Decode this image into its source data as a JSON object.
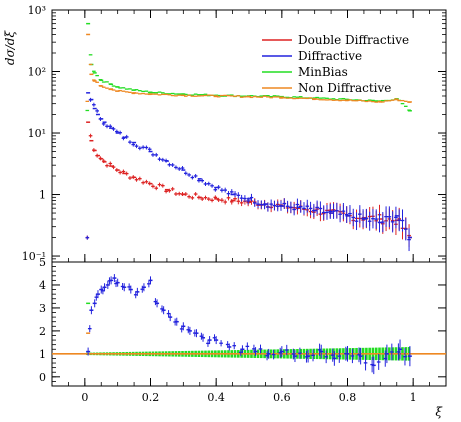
{
  "chart_data": [
    {
      "type": "scatter",
      "panel": "main",
      "ylabel": "dσ/dξ",
      "yscale": "log",
      "xlim": [
        -0.1,
        1.1
      ],
      "ylim": [
        0.08,
        1000
      ],
      "y_ticks": [
        {
          "value": 0.1,
          "label": "10⁻¹"
        },
        {
          "value": 1,
          "label": "1"
        },
        {
          "value": 10,
          "label": "10¹"
        },
        {
          "value": 100,
          "label": "10²"
        },
        {
          "value": 1000,
          "label": "10³"
        }
      ],
      "grid": false,
      "legend_position": "top-right",
      "series": [
        {
          "name": "Double Diffractive",
          "color": "#dd2222",
          "x": [
            0.01,
            0.02,
            0.03,
            0.04,
            0.05,
            0.06,
            0.08,
            0.1,
            0.12,
            0.15,
            0.2,
            0.25,
            0.3,
            0.35,
            0.4,
            0.45,
            0.5,
            0.55,
            0.6,
            0.65,
            0.7,
            0.75,
            0.8,
            0.85,
            0.9,
            0.95,
            0.99
          ],
          "y": [
            15,
            7.5,
            5.2,
            4.3,
            3.8,
            3.4,
            2.9,
            2.5,
            2.2,
            1.9,
            1.5,
            1.2,
            1.0,
            0.9,
            0.85,
            0.8,
            0.75,
            0.7,
            0.65,
            0.6,
            0.55,
            0.5,
            0.45,
            0.42,
            0.4,
            0.38,
            0.2
          ]
        },
        {
          "name": "Diffractive",
          "color": "#2222dd",
          "x": [
            0.01,
            0.02,
            0.03,
            0.04,
            0.05,
            0.06,
            0.08,
            0.1,
            0.12,
            0.15,
            0.2,
            0.25,
            0.3,
            0.35,
            0.4,
            0.45,
            0.5,
            0.55,
            0.6,
            0.65,
            0.7,
            0.75,
            0.8,
            0.85,
            0.9,
            0.95,
            0.99
          ],
          "y": [
            45,
            35,
            25,
            20,
            17,
            15,
            12,
            10,
            8.5,
            7,
            5,
            3.5,
            2.5,
            1.8,
            1.3,
            1.0,
            0.85,
            0.7,
            0.65,
            0.62,
            0.55,
            0.5,
            0.45,
            0.4,
            0.35,
            0.45,
            0.2
          ]
        },
        {
          "name": "MinBias",
          "color": "#22dd22",
          "x": [
            0.01,
            0.02,
            0.03,
            0.05,
            0.08,
            0.1,
            0.15,
            0.2,
            0.3,
            0.4,
            0.5,
            0.6,
            0.7,
            0.8,
            0.9,
            0.95,
            0.99
          ],
          "y": [
            600,
            130,
            95,
            72,
            62,
            56,
            50,
            46,
            43,
            41,
            40,
            39,
            37,
            35,
            33,
            36,
            23
          ]
        },
        {
          "name": "Non Diffractive",
          "color": "#ee8822",
          "x": [
            0.01,
            0.02,
            0.03,
            0.05,
            0.08,
            0.1,
            0.15,
            0.2,
            0.3,
            0.4,
            0.5,
            0.6,
            0.7,
            0.8,
            0.9,
            0.95,
            0.99
          ],
          "y": [
            400,
            90,
            70,
            58,
            52,
            48,
            45,
            43,
            41,
            40,
            39,
            38,
            36,
            34,
            32,
            35,
            32
          ]
        }
      ]
    },
    {
      "type": "scatter",
      "panel": "ratio",
      "xlabel": "ξ",
      "xlim": [
        -0.1,
        1.1
      ],
      "ylim": [
        -0.4,
        5
      ],
      "x_ticks": [
        {
          "value": 0,
          "label": "0"
        },
        {
          "value": 0.2,
          "label": "0.2"
        },
        {
          "value": 0.4,
          "label": "0.4"
        },
        {
          "value": 0.6,
          "label": "0.6"
        },
        {
          "value": 0.8,
          "label": "0.8"
        },
        {
          "value": 1,
          "label": "1"
        }
      ],
      "y_ticks": [
        {
          "value": 0,
          "label": "0"
        },
        {
          "value": 1,
          "label": "1"
        },
        {
          "value": 2,
          "label": "2"
        },
        {
          "value": 3,
          "label": "3"
        },
        {
          "value": 4,
          "label": "4"
        },
        {
          "value": 5,
          "label": "5"
        }
      ],
      "reference_line": 1,
      "band_color": "#22dd22",
      "series": [
        {
          "name": "Diffractive",
          "color": "#2222dd",
          "x": [
            0.01,
            0.02,
            0.03,
            0.04,
            0.05,
            0.06,
            0.07,
            0.08,
            0.09,
            0.1,
            0.12,
            0.14,
            0.16,
            0.18,
            0.2,
            0.22,
            0.24,
            0.26,
            0.28,
            0.3,
            0.32,
            0.34,
            0.36,
            0.38,
            0.4,
            0.44,
            0.48,
            0.52,
            0.56,
            0.6,
            0.64,
            0.68,
            0.72,
            0.76,
            0.8,
            0.84,
            0.88,
            0.92,
            0.96,
            0.99
          ],
          "y": [
            1.1,
            2.9,
            3.2,
            3.6,
            3.8,
            3.9,
            4.0,
            4.2,
            4.3,
            4.1,
            3.9,
            3.8,
            3.7,
            3.9,
            4.2,
            3.2,
            2.9,
            2.6,
            2.4,
            2.2,
            2.0,
            1.9,
            1.7,
            1.6,
            1.6,
            1.3,
            1.2,
            1.1,
            1.0,
            1.1,
            0.9,
            0.9,
            1.1,
            0.8,
            1.0,
            0.9,
            0.5,
            1.0,
            1.2,
            0.9
          ]
        },
        {
          "name": "MinBias",
          "color": "#22dd22",
          "x": [
            0.01
          ],
          "y": [
            3.2
          ]
        },
        {
          "name": "Non Diffractive",
          "color": "#ee8822",
          "x": [
            0.01
          ],
          "y": [
            1.9
          ]
        }
      ]
    }
  ]
}
